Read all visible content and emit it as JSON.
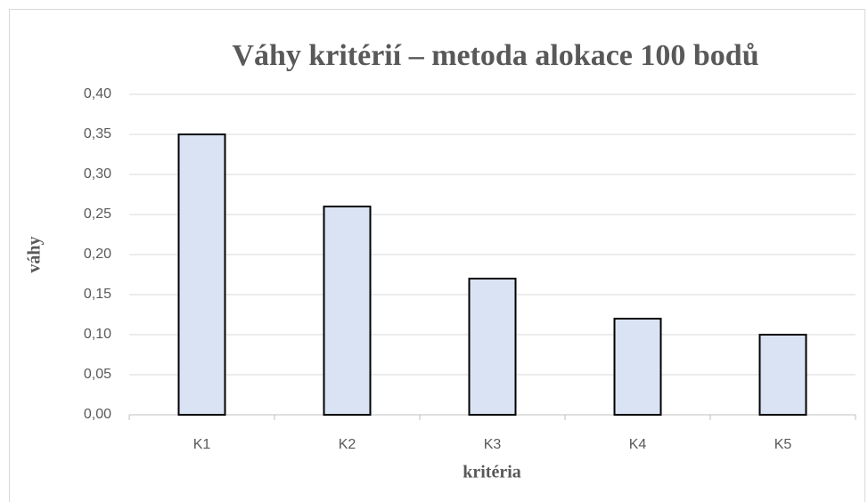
{
  "chart_data": {
    "type": "bar",
    "title": "Váhy kritérií – metoda alokace 100 bodů",
    "x_label": "kritéria",
    "y_label": "váhy",
    "categories": [
      "K1",
      "K2",
      "K3",
      "K4",
      "K5"
    ],
    "values": [
      0.35,
      0.26,
      0.17,
      0.12,
      0.1
    ],
    "color": "#dae3f3",
    "ylim": [
      0,
      0.4
    ],
    "yticks": [
      {
        "value": 0,
        "label": "0,00"
      },
      {
        "value": 0.05,
        "label": "0,05"
      },
      {
        "value": 0.1,
        "label": "0,10"
      },
      {
        "value": 0.15,
        "label": "0,15"
      },
      {
        "value": 0.2,
        "label": "0,20"
      },
      {
        "value": 0.25,
        "label": "0,25"
      },
      {
        "value": 0.3,
        "label": "0,30"
      },
      {
        "value": 0.35,
        "label": "0,35"
      },
      {
        "value": 0.4,
        "label": "0,40"
      }
    ],
    "grid": true
  }
}
